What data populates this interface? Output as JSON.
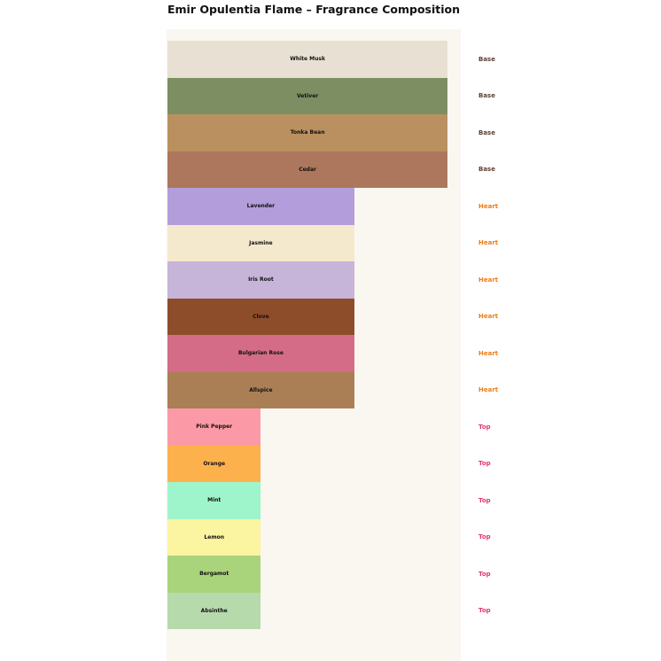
{
  "title": "Emir Opulentia Flame – Fragrance Composition",
  "background": {
    "page": "#ffffff",
    "plot": "#faf6f0"
  },
  "tiers": {
    "Base": {
      "label": "Base",
      "color": "#5d4037"
    },
    "Heart": {
      "label": "Heart",
      "color": "#f07c12"
    },
    "Top": {
      "label": "Top",
      "color": "#e23a6f"
    }
  },
  "chart_data": {
    "type": "bar",
    "orientation": "horizontal",
    "title": "Emir Opulentia Flame – Fragrance Composition",
    "xlabel": "",
    "ylabel": "",
    "xlim": [
      0,
      3.15
    ],
    "grid": false,
    "axes_visible": false,
    "legend": "none",
    "value_meaning": "relative bar width by tier: Base=3, Heart=2, Top=1",
    "categories": [
      "White Musk",
      "Vetiver",
      "Tonka Bean",
      "Cedar",
      "Lavender",
      "Jasmine",
      "Iris Root",
      "Clove",
      "Bulgarian Rose",
      "Allspice",
      "Pink Pepper",
      "Orange",
      "Mint",
      "Lemon",
      "Bergamot",
      "Absinthe"
    ],
    "series": [
      {
        "name": "relative_width",
        "values": [
          3,
          3,
          3,
          3,
          2,
          2,
          2,
          2,
          2,
          2,
          1,
          1,
          1,
          1,
          1,
          1
        ]
      }
    ],
    "notes": [
      {
        "name": "White Musk",
        "tier": "Base",
        "value": 3,
        "color": "#e8e1d3"
      },
      {
        "name": "Vetiver",
        "tier": "Base",
        "value": 3,
        "color": "#7d8f62"
      },
      {
        "name": "Tonka Bean",
        "tier": "Base",
        "value": 3,
        "color": "#bb9060"
      },
      {
        "name": "Cedar",
        "tier": "Base",
        "value": 3,
        "color": "#ac775c"
      },
      {
        "name": "Lavender",
        "tier": "Heart",
        "value": 2,
        "color": "#b39dda"
      },
      {
        "name": "Jasmine",
        "tier": "Heart",
        "value": 2,
        "color": "#f5e9cd"
      },
      {
        "name": "Iris Root",
        "tier": "Heart",
        "value": 2,
        "color": "#c6b4d9"
      },
      {
        "name": "Clove",
        "tier": "Heart",
        "value": 2,
        "color": "#8d4d2a"
      },
      {
        "name": "Bulgarian Rose",
        "tier": "Heart",
        "value": 2,
        "color": "#d56c87"
      },
      {
        "name": "Allspice",
        "tier": "Heart",
        "value": 2,
        "color": "#ab7f56"
      },
      {
        "name": "Pink Pepper",
        "tier": "Top",
        "value": 1,
        "color": "#fb9aa6"
      },
      {
        "name": "Orange",
        "tier": "Top",
        "value": 1,
        "color": "#fcb14c"
      },
      {
        "name": "Mint",
        "tier": "Top",
        "value": 1,
        "color": "#9ff5cb"
      },
      {
        "name": "Lemon",
        "tier": "Top",
        "value": 1,
        "color": "#fbf4a0"
      },
      {
        "name": "Bergamot",
        "tier": "Top",
        "value": 1,
        "color": "#aad47c"
      },
      {
        "name": "Absinthe",
        "tier": "Top",
        "value": 1,
        "color": "#b6daac"
      }
    ]
  }
}
